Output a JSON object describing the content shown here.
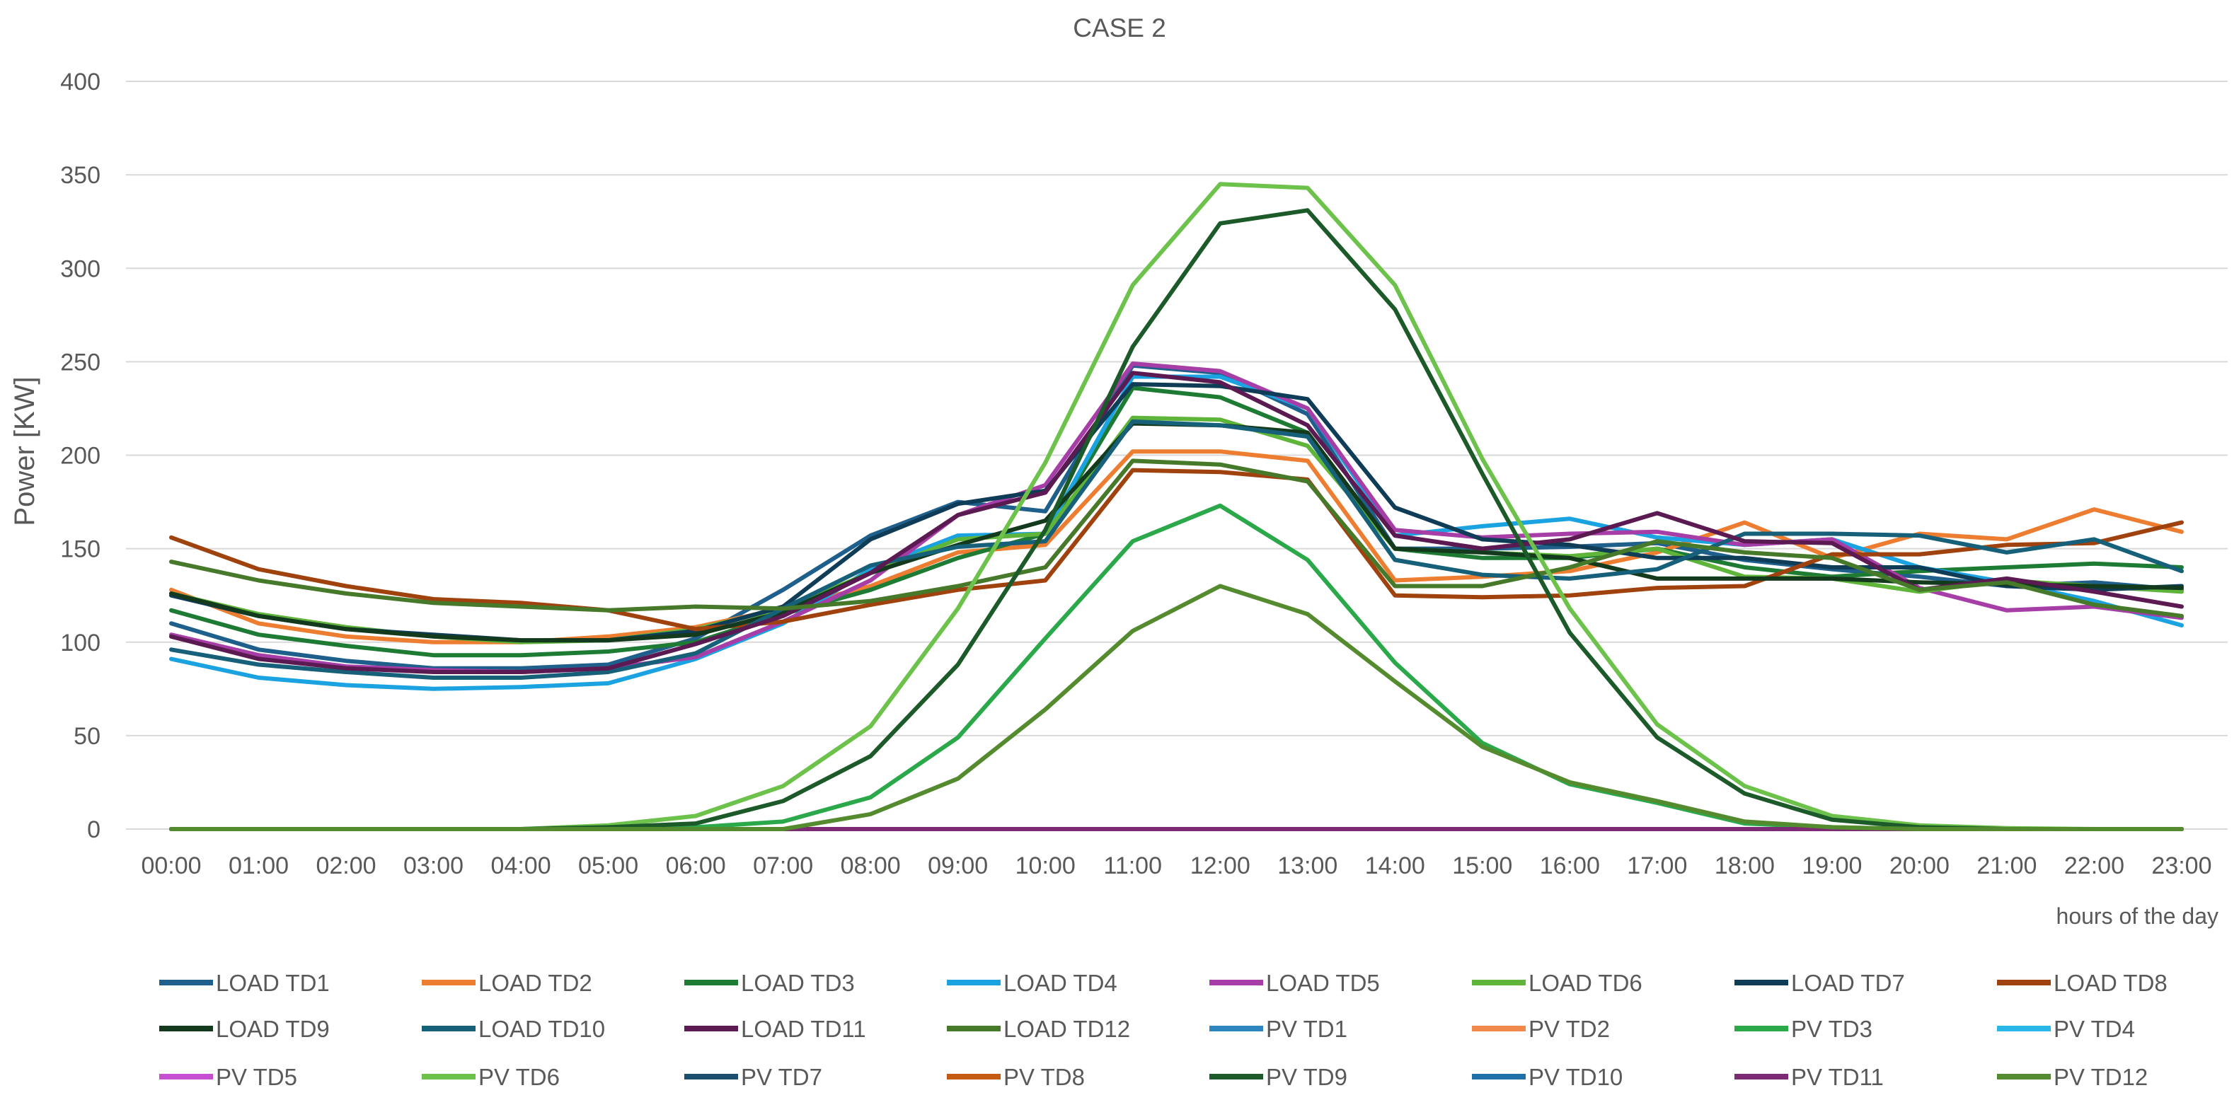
{
  "chart_data": {
    "type": "line",
    "title": "CASE 2",
    "xlabel": "hours of the day",
    "ylabel": "Power [KW]",
    "ylim": [
      0,
      400
    ],
    "yticks": [
      0,
      50,
      100,
      150,
      200,
      250,
      300,
      350,
      400
    ],
    "grid": true,
    "legend_position": "bottom",
    "categories": [
      "00:00",
      "01:00",
      "02:00",
      "03:00",
      "04:00",
      "05:00",
      "06:00",
      "07:00",
      "08:00",
      "09:00",
      "10:00",
      "11:00",
      "12:00",
      "13:00",
      "14:00",
      "15:00",
      "16:00",
      "17:00",
      "18:00",
      "19:00",
      "20:00",
      "21:00",
      "22:00",
      "23:00"
    ],
    "series": [
      {
        "name": "LOAD TD1",
        "color": "#1f5f8b",
        "values": [
          110,
          96,
          90,
          86,
          86,
          88,
          102,
          128,
          157,
          175,
          170,
          248,
          244,
          222,
          150,
          150,
          151,
          153,
          144,
          139,
          135,
          130,
          132,
          128
        ]
      },
      {
        "name": "LOAD TD2",
        "color": "#ed7d31",
        "values": [
          128,
          110,
          103,
          100,
          100,
          103,
          108,
          118,
          130,
          148,
          152,
          202,
          202,
          197,
          133,
          135,
          138,
          148,
          164,
          145,
          158,
          155,
          171,
          159
        ]
      },
      {
        "name": "LOAD TD3",
        "color": "#1e7b34",
        "values": [
          117,
          104,
          98,
          93,
          93,
          95,
          100,
          115,
          128,
          145,
          158,
          236,
          231,
          212,
          150,
          145,
          145,
          150,
          140,
          135,
          138,
          140,
          142,
          140
        ]
      },
      {
        "name": "LOAD TD4",
        "color": "#1aa3e0",
        "values": [
          91,
          81,
          77,
          75,
          76,
          78,
          91,
          110,
          139,
          157,
          158,
          242,
          242,
          225,
          157,
          162,
          166,
          156,
          152,
          155,
          140,
          132,
          122,
          109
        ]
      },
      {
        "name": "LOAD TD5",
        "color": "#a73da6",
        "values": [
          104,
          93,
          87,
          85,
          84,
          86,
          92,
          111,
          133,
          168,
          184,
          249,
          245,
          225,
          160,
          156,
          158,
          159,
          152,
          155,
          129,
          117,
          119,
          113
        ]
      },
      {
        "name": "LOAD TD6",
        "color": "#5fb43a",
        "values": [
          126,
          115,
          108,
          103,
          100,
          101,
          107,
          118,
          137,
          155,
          158,
          220,
          219,
          205,
          150,
          148,
          146,
          150,
          135,
          134,
          127,
          133,
          130,
          127
        ]
      },
      {
        "name": "LOAD TD7",
        "color": "#0f3c56",
        "values": [
          125,
          114,
          107,
          104,
          101,
          101,
          106,
          119,
          155,
          174,
          181,
          238,
          237,
          230,
          172,
          155,
          152,
          145,
          145,
          140,
          140,
          130,
          128,
          130
        ]
      },
      {
        "name": "LOAD TD8",
        "color": "#a0420e",
        "values": [
          156,
          139,
          130,
          123,
          121,
          117,
          107,
          111,
          120,
          128,
          133,
          192,
          191,
          187,
          125,
          124,
          125,
          129,
          130,
          147,
          147,
          152,
          153,
          164
        ]
      },
      {
        "name": "LOAD TD9",
        "color": "#133a1c",
        "values": [
          126,
          114,
          107,
          103,
          101,
          101,
          104,
          116,
          137,
          152,
          165,
          217,
          216,
          212,
          150,
          148,
          145,
          134,
          134,
          134,
          132,
          131,
          130,
          129
        ]
      },
      {
        "name": "LOAD TD10",
        "color": "#17607a",
        "values": [
          96,
          88,
          84,
          81,
          81,
          84,
          94,
          118,
          141,
          151,
          154,
          218,
          216,
          210,
          144,
          136,
          134,
          139,
          158,
          158,
          157,
          148,
          155,
          138
        ]
      },
      {
        "name": "LOAD TD11",
        "color": "#5b1a52",
        "values": [
          103,
          91,
          86,
          84,
          84,
          86,
          99,
          114,
          137,
          168,
          180,
          244,
          239,
          216,
          157,
          150,
          155,
          169,
          154,
          153,
          128,
          134,
          127,
          119
        ]
      },
      {
        "name": "LOAD TD12",
        "color": "#46792a",
        "values": [
          143,
          133,
          126,
          121,
          119,
          117,
          119,
          118,
          122,
          130,
          140,
          197,
          195,
          186,
          130,
          130,
          140,
          154,
          148,
          145,
          128,
          132,
          120,
          114
        ]
      },
      {
        "name": "PV TD1",
        "color": "#2e86c1",
        "values": [
          0,
          0,
          0,
          0,
          0,
          0,
          0,
          0,
          0,
          0,
          0,
          0,
          0,
          0,
          0,
          0,
          0,
          0,
          0,
          0,
          0,
          0,
          0,
          0
        ]
      },
      {
        "name": "PV TD2",
        "color": "#f0894a",
        "values": [
          0,
          0,
          0,
          0,
          0,
          0,
          0,
          0,
          0,
          0,
          0,
          0,
          0,
          0,
          0,
          0,
          0,
          0,
          0,
          0,
          0,
          0,
          0,
          0
        ]
      },
      {
        "name": "PV TD3",
        "color": "#2aa84a",
        "values": [
          0,
          0,
          0,
          0,
          0,
          0.5,
          1,
          4,
          17,
          49,
          102,
          154,
          173,
          144,
          89,
          46,
          24,
          14,
          3,
          1,
          0,
          0,
          0,
          0
        ]
      },
      {
        "name": "PV TD4",
        "color": "#29b6e8",
        "values": [
          0,
          0,
          0,
          0,
          0,
          0,
          0,
          0,
          0,
          0,
          0,
          0,
          0,
          0,
          0,
          0,
          0,
          0,
          0,
          0,
          0,
          0,
          0,
          0
        ]
      },
      {
        "name": "PV TD5",
        "color": "#c54fd0",
        "values": [
          0,
          0,
          0,
          0,
          0,
          0,
          0,
          0,
          0,
          0,
          0,
          0,
          0,
          0,
          0,
          0,
          0,
          0,
          0,
          0,
          0,
          0,
          0,
          0
        ]
      },
      {
        "name": "PV TD6",
        "color": "#6cc24a",
        "values": [
          0,
          0,
          0,
          0,
          0,
          2,
          7,
          23,
          55,
          118,
          196,
          291,
          345,
          343,
          291,
          198,
          118,
          56,
          23,
          7,
          2,
          0.5,
          0,
          0
        ]
      },
      {
        "name": "PV TD7",
        "color": "#1b4d6e",
        "values": [
          0,
          0,
          0,
          0,
          0,
          0,
          0,
          0,
          0,
          0,
          0,
          0,
          0,
          0,
          0,
          0,
          0,
          0,
          0,
          0,
          0,
          0,
          0,
          0
        ]
      },
      {
        "name": "PV TD8",
        "color": "#c55a11",
        "values": [
          0,
          0,
          0,
          0,
          0,
          0,
          0,
          0,
          0,
          0,
          0,
          0,
          0,
          0,
          0,
          0,
          0,
          0,
          0,
          0,
          0,
          0,
          0,
          0
        ]
      },
      {
        "name": "PV TD9",
        "color": "#1c5a2a",
        "values": [
          0,
          0,
          0,
          0,
          0,
          1,
          3,
          15,
          39,
          88,
          160,
          258,
          324,
          331,
          278,
          190,
          105,
          49,
          19,
          5,
          1,
          0,
          0,
          0
        ]
      },
      {
        "name": "PV TD10",
        "color": "#1f6fa8",
        "values": [
          0,
          0,
          0,
          0,
          0,
          0,
          0,
          0,
          0,
          0,
          0,
          0,
          0,
          0,
          0,
          0,
          0,
          0,
          0,
          0,
          0,
          0,
          0,
          0
        ]
      },
      {
        "name": "PV TD11",
        "color": "#7b2a73",
        "values": [
          0,
          0,
          0,
          0,
          0,
          0,
          0,
          0,
          0,
          0,
          0,
          0,
          0,
          0,
          0,
          0,
          0,
          0,
          0,
          0,
          0,
          0,
          0,
          0
        ]
      },
      {
        "name": "PV TD12",
        "color": "#558b2f",
        "values": [
          0,
          0,
          0,
          0,
          0,
          0,
          0,
          0,
          8,
          27,
          64,
          106,
          130,
          115,
          79,
          44,
          25,
          15,
          4,
          1,
          0,
          0,
          0,
          0
        ]
      }
    ]
  }
}
